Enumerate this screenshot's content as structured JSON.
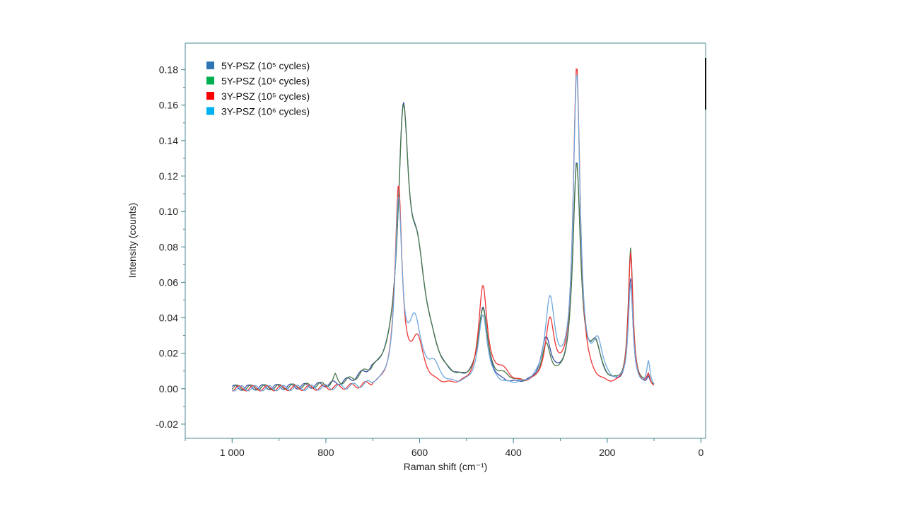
{
  "chart_data": {
    "type": "line",
    "xlabel": "Raman shift (cm⁻¹)",
    "ylabel": "Intensity (counts)",
    "xlim": [
      1100,
      -10
    ],
    "ylim": [
      -0.028,
      0.195
    ],
    "x_ticks": [
      1000,
      800,
      600,
      400,
      200,
      0
    ],
    "x_tick_labels": [
      "1 000",
      "800",
      "600",
      "400",
      "200",
      "0"
    ],
    "y_ticks": [
      -0.02,
      0.0,
      0.02,
      0.04,
      0.06,
      0.08,
      0.1,
      0.12,
      0.14,
      0.16,
      0.18
    ],
    "y_tick_labels": [
      "-0.02",
      "0.00",
      "0.02",
      "0.04",
      "0.06",
      "0.08",
      "0.10",
      "0.12",
      "0.14",
      "0.16",
      "0.18"
    ],
    "legend_position": "top-left",
    "grid": false,
    "series": [
      {
        "name": "5Y-PSZ (10⁵ cycles)",
        "legend_color": "#2e75b6",
        "line_color": "#3b4fa8",
        "peaks": [
          [
            705,
            0.004,
            35
          ],
          [
            635,
            0.138,
            14
          ],
          [
            605,
            0.06,
            22
          ],
          [
            575,
            0.008,
            20
          ],
          [
            465,
            0.043,
            12
          ],
          [
            330,
            0.025,
            13
          ],
          [
            265,
            0.125,
            10
          ],
          [
            225,
            0.02,
            14
          ],
          [
            150,
            0.06,
            6
          ],
          [
            112,
            0.005,
            4
          ]
        ]
      },
      {
        "name": "5Y-PSZ (10⁶ cycles)",
        "legend_color": "#00b050",
        "line_color": "#4a7a4a",
        "peaks": [
          [
            780,
            0.004,
            4
          ],
          [
            705,
            0.004,
            35
          ],
          [
            635,
            0.137,
            14
          ],
          [
            605,
            0.06,
            22
          ],
          [
            575,
            0.008,
            20
          ],
          [
            465,
            0.042,
            12
          ],
          [
            420,
            0.004,
            18
          ],
          [
            330,
            0.021,
            12
          ],
          [
            265,
            0.124,
            10
          ],
          [
            225,
            0.02,
            14
          ],
          [
            150,
            0.077,
            6
          ],
          [
            112,
            0.006,
            4
          ]
        ]
      },
      {
        "name": "3Y-PSZ (10⁵ cycles)",
        "legend_color": "#ff0000",
        "line_color": "#ee3333",
        "peaks": [
          [
            645,
            0.112,
            9
          ],
          [
            605,
            0.025,
            16
          ],
          [
            465,
            0.056,
            11
          ],
          [
            425,
            0.008,
            20
          ],
          [
            322,
            0.035,
            12
          ],
          [
            265,
            0.18,
            9
          ],
          [
            150,
            0.075,
            6
          ],
          [
            112,
            0.006,
            4
          ]
        ]
      },
      {
        "name": "3Y-PSZ (10⁶ cycles)",
        "legend_color": "#00b0f0",
        "line_color": "#6fa8dc",
        "peaks": [
          [
            645,
            0.102,
            9
          ],
          [
            610,
            0.035,
            16
          ],
          [
            570,
            0.01,
            14
          ],
          [
            465,
            0.04,
            12
          ],
          [
            322,
            0.047,
            13
          ],
          [
            265,
            0.174,
            9
          ],
          [
            220,
            0.022,
            13
          ],
          [
            150,
            0.058,
            6
          ],
          [
            112,
            0.013,
            4
          ]
        ]
      }
    ],
    "x_range": [
      1000,
      100
    ]
  }
}
